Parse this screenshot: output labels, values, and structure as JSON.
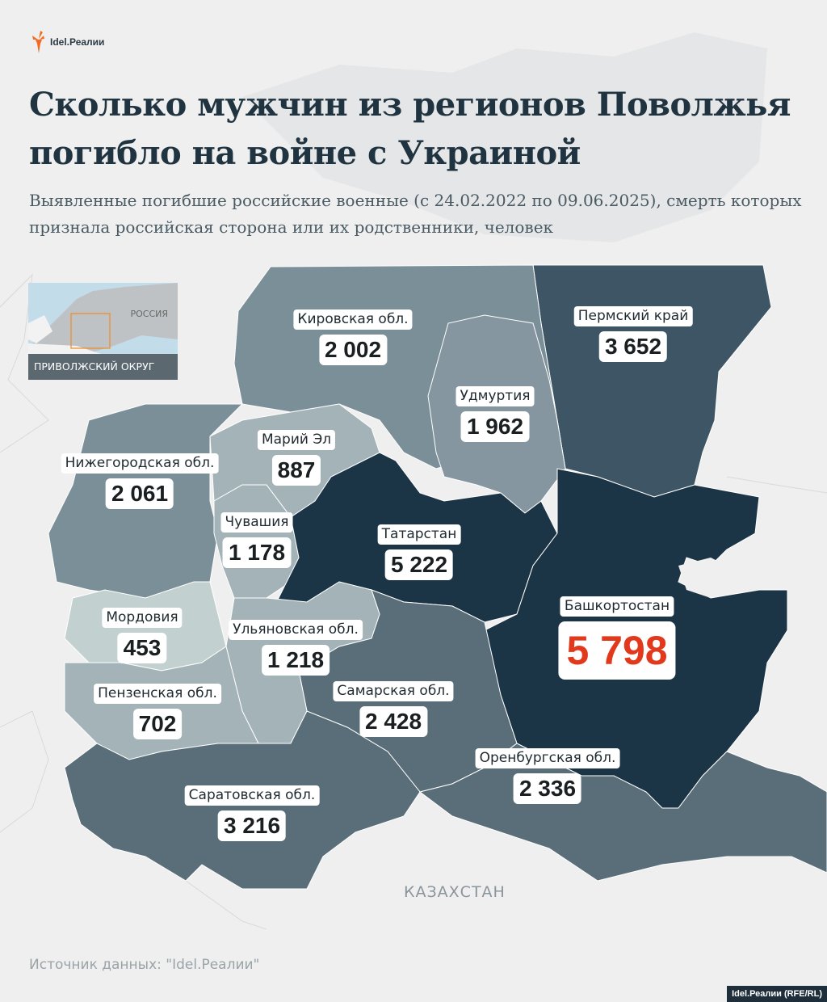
{
  "logo": {
    "text": "Idel.Реалии"
  },
  "title": "Сколько мужчин из регионов Поволжья погибло на войне с Украиной",
  "subtitle": "Выявленные погибшие российские военные (с 24.02.2022 по 09.06.2025), смерть которых признала российская сторона или их родственники, человек",
  "inset": {
    "country": "РОССИЯ",
    "district": "ПРИВОЛЖСКИЙ ОКРУГ"
  },
  "colors": {
    "highlight": "#e2391c",
    "darkest": "#1b3547",
    "dark": "#3d5565",
    "mid": "#5a6e79",
    "light": "#7b8f98",
    "lighter": "#a3b3b8",
    "lightest": "#c3d0d0",
    "inset_frame": "#f08a24"
  },
  "regions": [
    {
      "name": "Кировская обл.",
      "value": "2 002"
    },
    {
      "name": "Пермский край",
      "value": "3 652"
    },
    {
      "name": "Удмуртия",
      "value": "1 962"
    },
    {
      "name": "Марий Эл",
      "value": "887"
    },
    {
      "name": "Нижегородская обл.",
      "value": "2 061"
    },
    {
      "name": "Чувашия",
      "value": "1 178"
    },
    {
      "name": "Татарстан",
      "value": "5 222"
    },
    {
      "name": "Башкортостан",
      "value": "5 798"
    },
    {
      "name": "Мордовия",
      "value": "453"
    },
    {
      "name": "Ульяновская обл.",
      "value": "1 218"
    },
    {
      "name": "Самарская обл.",
      "value": "2 428"
    },
    {
      "name": "Пензенская обл.",
      "value": "702"
    },
    {
      "name": "Оренбургская обл.",
      "value": "2 336"
    },
    {
      "name": "Саратовская обл.",
      "value": "3 216"
    }
  ],
  "neighbor": "КАЗАХСТАН",
  "source": "Источник данных: \"Idel.Реалии\"",
  "credit": "Idel.Реалии (RFE/RL)"
}
